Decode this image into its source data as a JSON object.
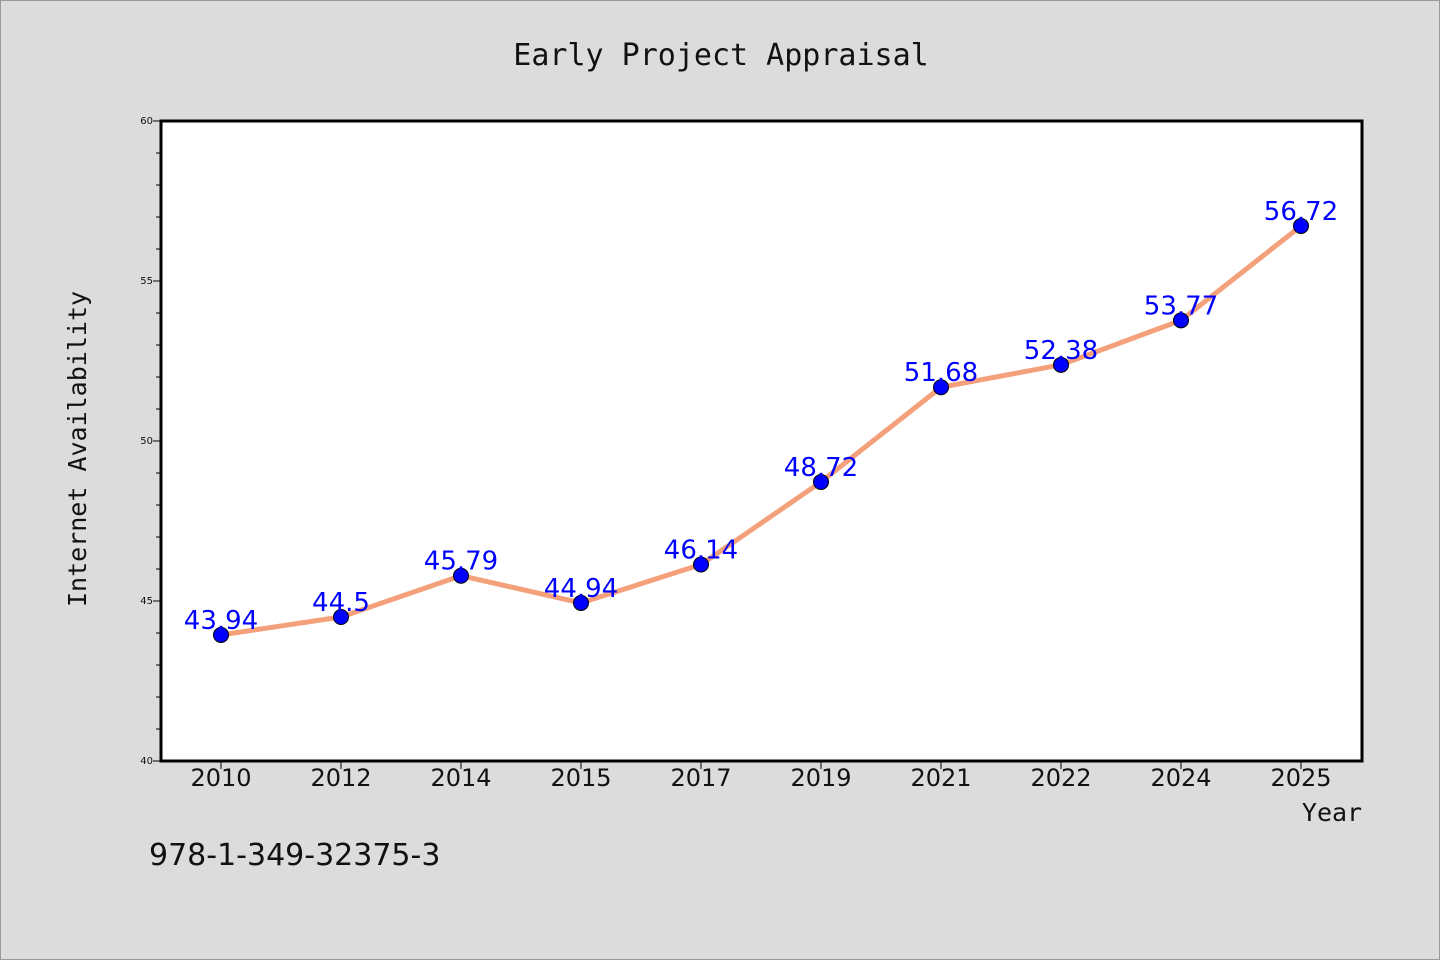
{
  "chart_data": {
    "type": "line",
    "title": "Early Project Appraisal",
    "xlabel": "Year",
    "ylabel": "Internet Availability",
    "categories": [
      "2010",
      "2012",
      "2014",
      "2015",
      "2017",
      "2019",
      "2021",
      "2022",
      "2024",
      "2025"
    ],
    "series": [
      {
        "values": [
          43.94,
          44.5,
          45.79,
          44.94,
          46.14,
          48.72,
          51.68,
          52.38,
          53.77,
          56.72
        ],
        "labels": [
          "43.94",
          "44.5",
          "45.79",
          "44.94",
          "46.14",
          "48.72",
          "51.68",
          "52.38",
          "53.77",
          "56.72"
        ]
      }
    ],
    "ylim": [
      40,
      60
    ],
    "yticks": [
      "40",
      "45",
      "50",
      "55",
      "60"
    ],
    "grid": false,
    "line_color": "#f4a07a",
    "marker_color": "#0000ff",
    "label_color": "#0000ff"
  },
  "footer": {
    "isbn": "978-1-349-32375-3"
  }
}
